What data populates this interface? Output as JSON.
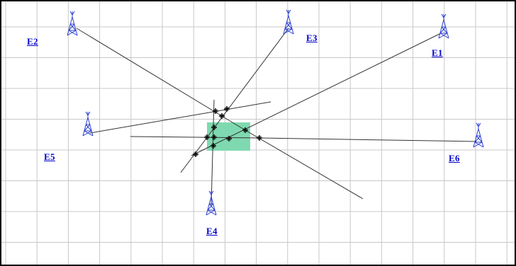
{
  "map": {
    "colors": {
      "background": "#ffffff",
      "grid": "#c8c8c8",
      "border": "#000000",
      "lines": "#333333",
      "tower": "#2a3fd0",
      "label": "#0000cc",
      "zone": "#7fd9b0",
      "marker": "#111111"
    },
    "towers": [
      {
        "id": "E1",
        "label": "E1",
        "icon": "radio-tower-icon"
      },
      {
        "id": "E2",
        "label": "E2",
        "icon": "radio-tower-icon"
      },
      {
        "id": "E3",
        "label": "E3",
        "icon": "radio-tower-icon"
      },
      {
        "id": "E4",
        "label": "E4",
        "icon": "radio-tower-icon"
      },
      {
        "id": "E5",
        "label": "E5",
        "icon": "radio-tower-icon"
      },
      {
        "id": "E6",
        "label": "E6",
        "icon": "radio-tower-icon"
      }
    ],
    "intersection_marker_icon": "star-cross-icon"
  }
}
